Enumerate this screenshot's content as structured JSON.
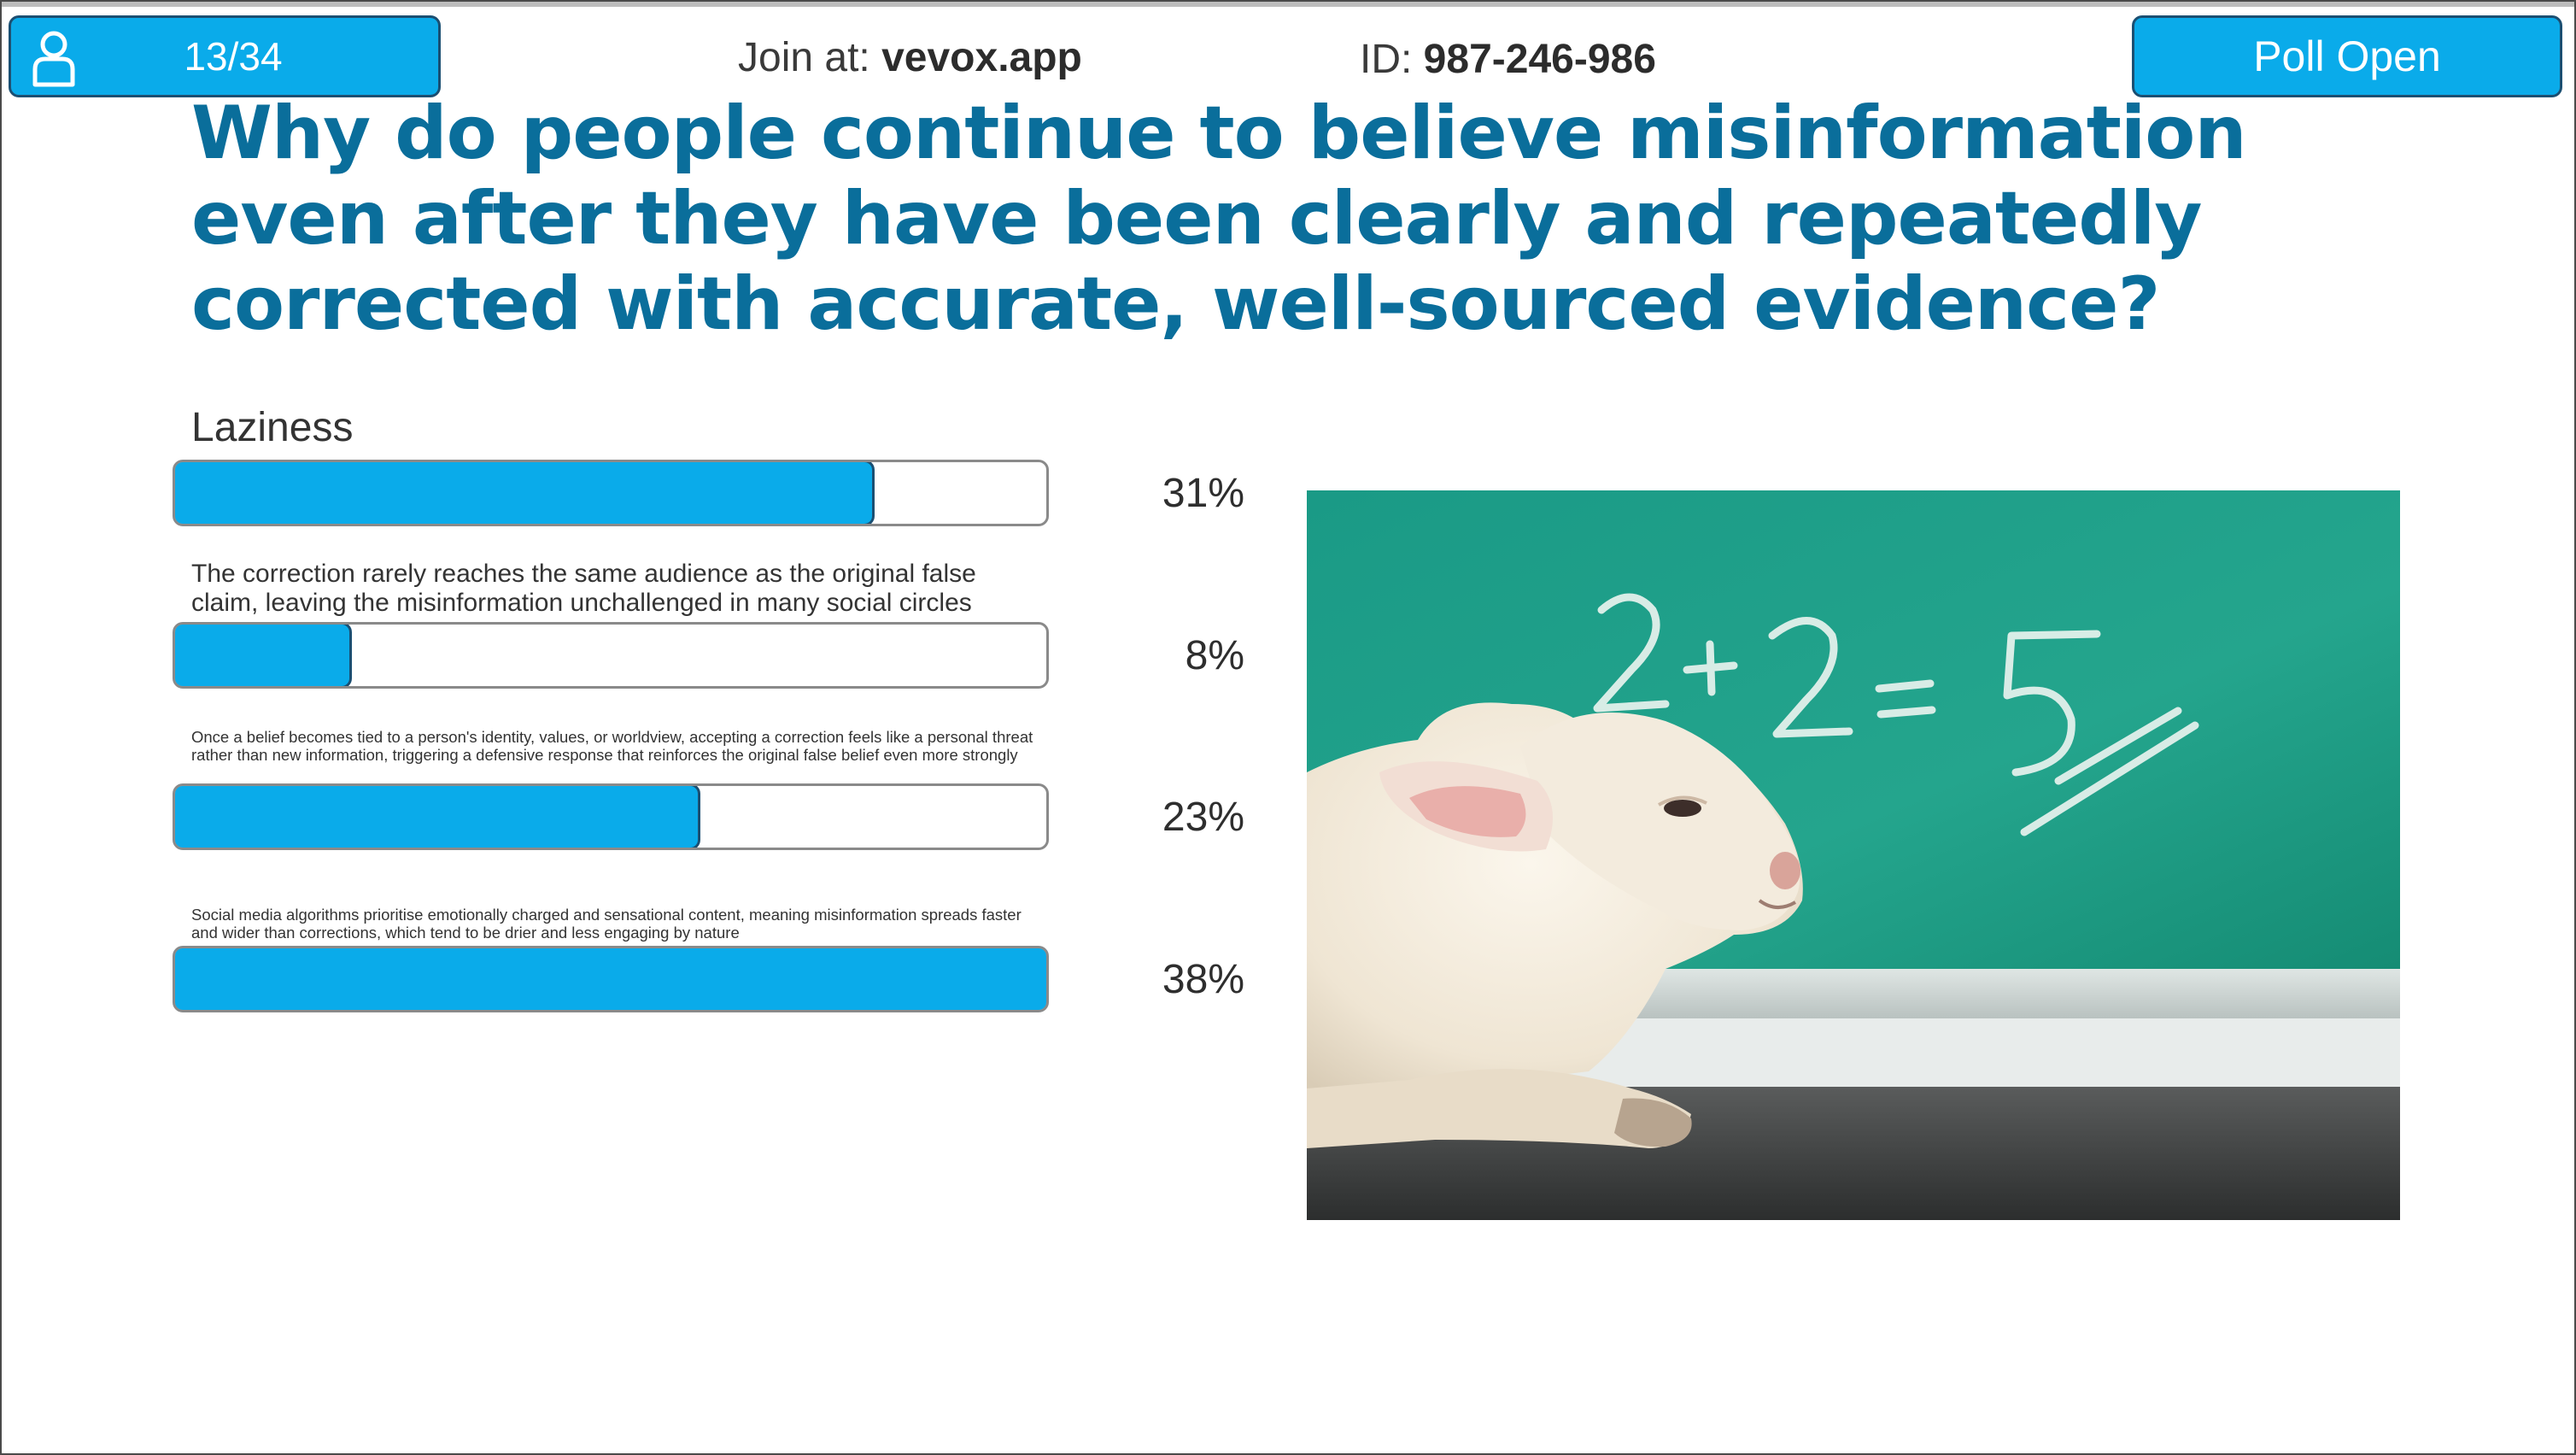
{
  "header": {
    "counter": "13/34",
    "join_label": "Join at: ",
    "join_value": "vevox.app",
    "id_label": "ID: ",
    "id_value": "987-246-986",
    "status": "Poll Open",
    "user_icon": "user-icon"
  },
  "question": "Why do people continue to believe misinformation even after they have been clearly and repeatedly corrected with accurate, well-sourced evidence?",
  "options": [
    {
      "label": "Laziness",
      "percent_text": "31%",
      "fill_fraction": 0.8
    },
    {
      "label": "The correction rarely reaches the same audience as the original false claim, leaving the misinformation unchallenged in many social circles",
      "percent_text": "8%",
      "fill_fraction": 0.2
    },
    {
      "label": "Once a belief becomes tied to a person's identity, values, or worldview, accepting a correction feels like a personal threat rather than new information, triggering a defensive response that reinforces the original false belief even more strongly",
      "percent_text": "23%",
      "fill_fraction": 0.6
    },
    {
      "label": "Social media algorithms prioritise emotionally charged and sensational content, meaning misinformation spreads faster and wider than corrections, which tend to be drier and less engaging by nature",
      "percent_text": "38%",
      "fill_fraction": 1.0
    }
  ],
  "photo": {
    "chalkboard_text": "2+2=5",
    "colors": {
      "board": "#1f9b82",
      "chalk": "#e8f3ee"
    }
  },
  "colors": {
    "accent": "#0aabea",
    "accent_border": "#1b4f72",
    "question": "#0a6e9b"
  }
}
